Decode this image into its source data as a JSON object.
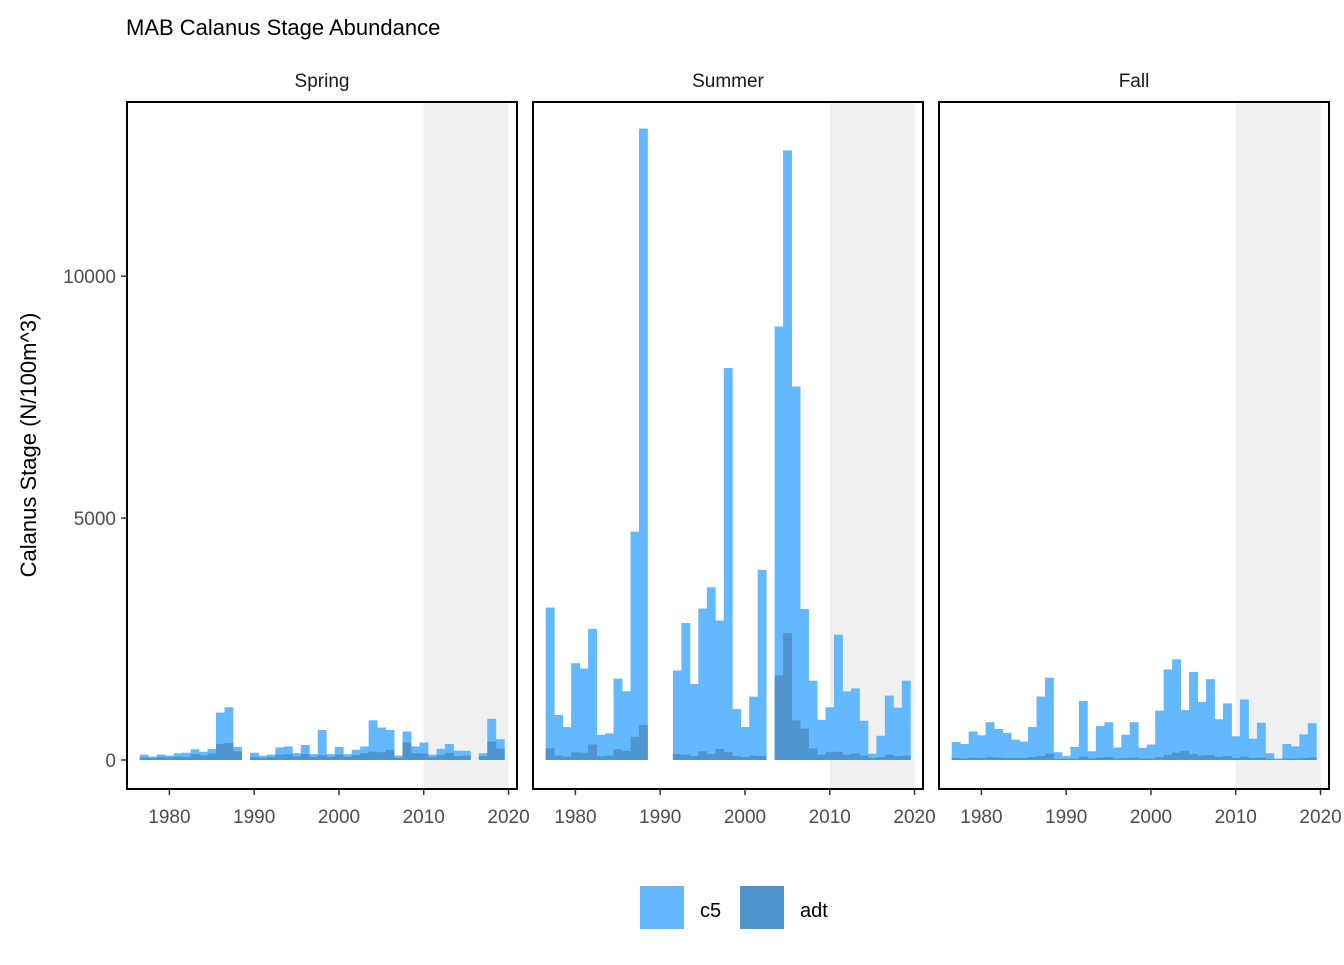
{
  "chart_data": {
    "type": "bar",
    "title": "MAB Calanus Stage Abundance",
    "ylabel": "Calanus Stage (N/100m^3)",
    "xlabel": "",
    "xlim": [
      1975,
      2021
    ],
    "ylim": [
      -600,
      13600
    ],
    "x_ticks": [
      1980,
      1990,
      2000,
      2010,
      2020
    ],
    "y_ticks": [
      0,
      5000,
      10000
    ],
    "grid": false,
    "legend_position": "bottom",
    "shaded_period": [
      2010,
      2020
    ],
    "colors": {
      "c5": "#63b8ff",
      "adt": "#4f94cd",
      "shade": "#f0f0f0"
    },
    "legend": [
      {
        "key": "c5",
        "label": "c5"
      },
      {
        "key": "adt",
        "label": "adt"
      }
    ],
    "panels": [
      {
        "season": "Spring",
        "series": [
          {
            "name": "c5",
            "points": [
              [
                1977,
                110
              ],
              [
                1978,
                70
              ],
              [
                1979,
                110
              ],
              [
                1980,
                90
              ],
              [
                1981,
                140
              ],
              [
                1982,
                150
              ],
              [
                1983,
                220
              ],
              [
                1984,
                170
              ],
              [
                1985,
                230
              ],
              [
                1986,
                980
              ],
              [
                1987,
                1090
              ],
              [
                1988,
                270
              ],
              [
                1990,
                150
              ],
              [
                1991,
                90
              ],
              [
                1992,
                110
              ],
              [
                1993,
                260
              ],
              [
                1994,
                280
              ],
              [
                1995,
                140
              ],
              [
                1996,
                310
              ],
              [
                1997,
                120
              ],
              [
                1998,
                620
              ],
              [
                1999,
                120
              ],
              [
                2000,
                270
              ],
              [
                2001,
                120
              ],
              [
                2002,
                210
              ],
              [
                2003,
                280
              ],
              [
                2004,
                820
              ],
              [
                2005,
                670
              ],
              [
                2006,
                620
              ],
              [
                2007,
                90
              ],
              [
                2008,
                590
              ],
              [
                2009,
                280
              ],
              [
                2010,
                360
              ],
              [
                2011,
                110
              ],
              [
                2012,
                230
              ],
              [
                2013,
                330
              ],
              [
                2014,
                190
              ],
              [
                2015,
                190
              ],
              [
                2017,
                140
              ],
              [
                2018,
                850
              ],
              [
                2019,
                430
              ]
            ]
          },
          {
            "name": "adt",
            "points": [
              [
                1977,
                50
              ],
              [
                1978,
                40
              ],
              [
                1979,
                60
              ],
              [
                1980,
                50
              ],
              [
                1981,
                70
              ],
              [
                1982,
                60
              ],
              [
                1983,
                120
              ],
              [
                1984,
                90
              ],
              [
                1985,
                130
              ],
              [
                1986,
                330
              ],
              [
                1987,
                350
              ],
              [
                1988,
                180
              ],
              [
                1990,
                60
              ],
              [
                1991,
                40
              ],
              [
                1992,
                60
              ],
              [
                1993,
                110
              ],
              [
                1994,
                120
              ],
              [
                1995,
                70
              ],
              [
                1996,
                120
              ],
              [
                1997,
                60
              ],
              [
                1998,
                100
              ],
              [
                1999,
                60
              ],
              [
                2000,
                110
              ],
              [
                2001,
                60
              ],
              [
                2002,
                100
              ],
              [
                2003,
                140
              ],
              [
                2004,
                170
              ],
              [
                2005,
                160
              ],
              [
                2006,
                210
              ],
              [
                2007,
                40
              ],
              [
                2008,
                360
              ],
              [
                2009,
                140
              ],
              [
                2010,
                130
              ],
              [
                2011,
                60
              ],
              [
                2012,
                100
              ],
              [
                2013,
                150
              ],
              [
                2014,
                80
              ],
              [
                2015,
                90
              ],
              [
                2017,
                80
              ],
              [
                2018,
                380
              ],
              [
                2019,
                230
              ]
            ]
          }
        ]
      },
      {
        "season": "Summer",
        "series": [
          {
            "name": "c5",
            "points": [
              [
                1977,
                3150
              ],
              [
                1978,
                930
              ],
              [
                1979,
                680
              ],
              [
                1980,
                2000
              ],
              [
                1981,
                1890
              ],
              [
                1982,
                2710
              ],
              [
                1983,
                520
              ],
              [
                1984,
                550
              ],
              [
                1985,
                1680
              ],
              [
                1986,
                1420
              ],
              [
                1987,
                4720
              ],
              [
                1988,
                13050
              ],
              [
                1992,
                1850
              ],
              [
                1993,
                2830
              ],
              [
                1994,
                1570
              ],
              [
                1995,
                3130
              ],
              [
                1996,
                3570
              ],
              [
                1997,
                2880
              ],
              [
                1998,
                8100
              ],
              [
                1999,
                1050
              ],
              [
                2000,
                680
              ],
              [
                2001,
                1310
              ],
              [
                2002,
                3930
              ],
              [
                2004,
                8960
              ],
              [
                2005,
                12600
              ],
              [
                2006,
                7720
              ],
              [
                2007,
                3120
              ],
              [
                2008,
                1640
              ],
              [
                2009,
                830
              ],
              [
                2010,
                1090
              ],
              [
                2011,
                2590
              ],
              [
                2012,
                1420
              ],
              [
                2013,
                1480
              ],
              [
                2014,
                810
              ],
              [
                2015,
                130
              ],
              [
                2016,
                500
              ],
              [
                2017,
                1330
              ],
              [
                2018,
                1080
              ],
              [
                2019,
                1640
              ]
            ]
          },
          {
            "name": "adt",
            "points": [
              [
                1977,
                240
              ],
              [
                1978,
                90
              ],
              [
                1979,
                70
              ],
              [
                1980,
                160
              ],
              [
                1981,
                150
              ],
              [
                1982,
                320
              ],
              [
                1983,
                80
              ],
              [
                1984,
                90
              ],
              [
                1985,
                220
              ],
              [
                1986,
                190
              ],
              [
                1987,
                480
              ],
              [
                1988,
                720
              ],
              [
                1992,
                120
              ],
              [
                1993,
                110
              ],
              [
                1994,
                80
              ],
              [
                1995,
                180
              ],
              [
                1996,
                120
              ],
              [
                1997,
                230
              ],
              [
                1998,
                160
              ],
              [
                1999,
                80
              ],
              [
                2000,
                60
              ],
              [
                2001,
                90
              ],
              [
                2002,
                80
              ],
              [
                2004,
                1750
              ],
              [
                2005,
                2620
              ],
              [
                2006,
                820
              ],
              [
                2007,
                650
              ],
              [
                2008,
                240
              ],
              [
                2009,
                110
              ],
              [
                2010,
                160
              ],
              [
                2011,
                170
              ],
              [
                2012,
                110
              ],
              [
                2013,
                130
              ],
              [
                2014,
                90
              ],
              [
                2015,
                40
              ],
              [
                2016,
                60
              ],
              [
                2017,
                110
              ],
              [
                2018,
                80
              ],
              [
                2019,
                90
              ]
            ]
          }
        ]
      },
      {
        "season": "Fall",
        "series": [
          {
            "name": "c5",
            "points": [
              [
                1977,
                370
              ],
              [
                1978,
                330
              ],
              [
                1979,
                590
              ],
              [
                1980,
                510
              ],
              [
                1981,
                780
              ],
              [
                1982,
                640
              ],
              [
                1983,
                560
              ],
              [
                1984,
                420
              ],
              [
                1985,
                380
              ],
              [
                1986,
                680
              ],
              [
                1987,
                1310
              ],
              [
                1988,
                1700
              ],
              [
                1989,
                160
              ],
              [
                1990,
                80
              ],
              [
                1991,
                270
              ],
              [
                1992,
                1220
              ],
              [
                1993,
                180
              ],
              [
                1994,
                700
              ],
              [
                1995,
                780
              ],
              [
                1996,
                260
              ],
              [
                1997,
                520
              ],
              [
                1998,
                780
              ],
              [
                1999,
                250
              ],
              [
                2000,
                320
              ],
              [
                2001,
                1020
              ],
              [
                2002,
                1870
              ],
              [
                2003,
                2080
              ],
              [
                2004,
                1030
              ],
              [
                2005,
                1820
              ],
              [
                2006,
                1200
              ],
              [
                2007,
                1670
              ],
              [
                2008,
                840
              ],
              [
                2009,
                1170
              ],
              [
                2010,
                490
              ],
              [
                2011,
                1250
              ],
              [
                2012,
                440
              ],
              [
                2013,
                770
              ],
              [
                2014,
                140
              ],
              [
                2015,
                30
              ],
              [
                2016,
                330
              ],
              [
                2017,
                280
              ],
              [
                2018,
                530
              ],
              [
                2019,
                760
              ]
            ]
          },
          {
            "name": "adt",
            "points": [
              [
                1977,
                40
              ],
              [
                1978,
                30
              ],
              [
                1979,
                50
              ],
              [
                1980,
                40
              ],
              [
                1981,
                60
              ],
              [
                1982,
                50
              ],
              [
                1983,
                40
              ],
              [
                1984,
                40
              ],
              [
                1985,
                40
              ],
              [
                1986,
                60
              ],
              [
                1987,
                80
              ],
              [
                1988,
                130
              ],
              [
                1989,
                20
              ],
              [
                1990,
                20
              ],
              [
                1991,
                30
              ],
              [
                1992,
                70
              ],
              [
                1993,
                30
              ],
              [
                1994,
                50
              ],
              [
                1995,
                60
              ],
              [
                1996,
                30
              ],
              [
                1997,
                40
              ],
              [
                1998,
                50
              ],
              [
                1999,
                30
              ],
              [
                2000,
                30
              ],
              [
                2001,
                60
              ],
              [
                2002,
                110
              ],
              [
                2003,
                150
              ],
              [
                2004,
                190
              ],
              [
                2005,
                120
              ],
              [
                2006,
                90
              ],
              [
                2007,
                100
              ],
              [
                2008,
                60
              ],
              [
                2009,
                80
              ],
              [
                2010,
                40
              ],
              [
                2011,
                70
              ],
              [
                2012,
                40
              ],
              [
                2013,
                50
              ],
              [
                2014,
                20
              ],
              [
                2015,
                10
              ],
              [
                2016,
                30
              ],
              [
                2017,
                30
              ],
              [
                2018,
                40
              ],
              [
                2019,
                50
              ]
            ]
          }
        ]
      }
    ]
  }
}
